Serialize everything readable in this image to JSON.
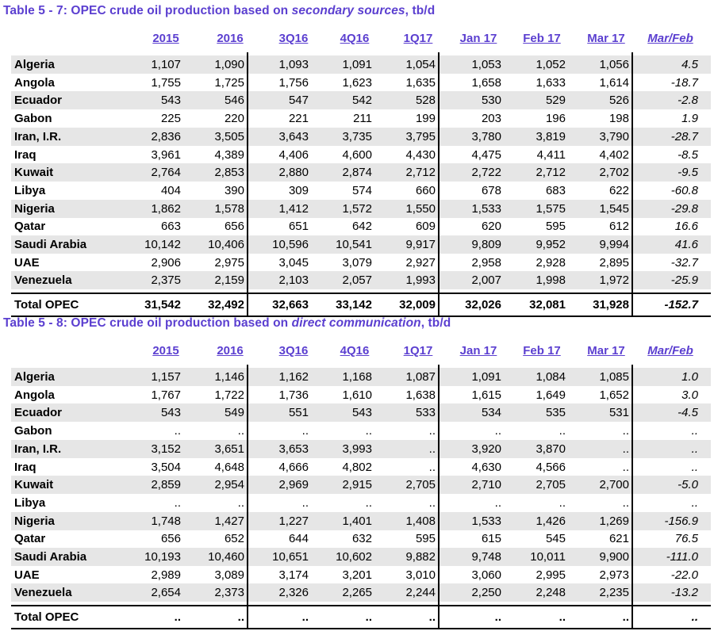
{
  "columns": [
    "2015",
    "2016",
    "3Q16",
    "4Q16",
    "1Q17",
    "Jan 17",
    "Feb 17",
    "Mar 17",
    "Mar/Feb"
  ],
  "table1": {
    "title_prefix": "Table 5 - 7: OPEC crude oil production based on",
    "title_em": "secondary sources",
    "title_suffix": ", tb/d",
    "rows": [
      {
        "name": "Algeria",
        "values": [
          "1,107",
          "1,090",
          "1,093",
          "1,091",
          "1,054",
          "1,053",
          "1,052",
          "1,056",
          "4.5"
        ]
      },
      {
        "name": "Angola",
        "values": [
          "1,755",
          "1,725",
          "1,756",
          "1,623",
          "1,635",
          "1,658",
          "1,633",
          "1,614",
          "-18.7"
        ]
      },
      {
        "name": "Ecuador",
        "values": [
          "543",
          "546",
          "547",
          "542",
          "528",
          "530",
          "529",
          "526",
          "-2.8"
        ]
      },
      {
        "name": "Gabon",
        "values": [
          "225",
          "220",
          "221",
          "211",
          "199",
          "203",
          "196",
          "198",
          "1.9"
        ]
      },
      {
        "name": "Iran, I.R.",
        "values": [
          "2,836",
          "3,505",
          "3,643",
          "3,735",
          "3,795",
          "3,780",
          "3,819",
          "3,790",
          "-28.7"
        ]
      },
      {
        "name": "Iraq",
        "values": [
          "3,961",
          "4,389",
          "4,406",
          "4,600",
          "4,430",
          "4,475",
          "4,411",
          "4,402",
          "-8.5"
        ]
      },
      {
        "name": "Kuwait",
        "values": [
          "2,764",
          "2,853",
          "2,880",
          "2,874",
          "2,712",
          "2,722",
          "2,712",
          "2,702",
          "-9.5"
        ]
      },
      {
        "name": "Libya",
        "values": [
          "404",
          "390",
          "309",
          "574",
          "660",
          "678",
          "683",
          "622",
          "-60.8"
        ]
      },
      {
        "name": "Nigeria",
        "values": [
          "1,862",
          "1,578",
          "1,412",
          "1,572",
          "1,550",
          "1,533",
          "1,575",
          "1,545",
          "-29.8"
        ]
      },
      {
        "name": "Qatar",
        "values": [
          "663",
          "656",
          "651",
          "642",
          "609",
          "620",
          "595",
          "612",
          "16.6"
        ]
      },
      {
        "name": "Saudi Arabia",
        "values": [
          "10,142",
          "10,406",
          "10,596",
          "10,541",
          "9,917",
          "9,809",
          "9,952",
          "9,994",
          "41.6"
        ]
      },
      {
        "name": "UAE",
        "values": [
          "2,906",
          "2,975",
          "3,045",
          "3,079",
          "2,927",
          "2,958",
          "2,928",
          "2,895",
          "-32.7"
        ]
      },
      {
        "name": "Venezuela",
        "values": [
          "2,375",
          "2,159",
          "2,103",
          "2,057",
          "1,993",
          "2,007",
          "1,998",
          "1,972",
          "-25.9"
        ]
      }
    ],
    "total": {
      "name": "Total  OPEC",
      "values": [
        "31,542",
        "32,492",
        "32,663",
        "33,142",
        "32,009",
        "32,026",
        "32,081",
        "31,928",
        "-152.7"
      ]
    }
  },
  "table2": {
    "title_prefix": "Table 5 - 8: OPEC crude oil production based on",
    "title_em": "direct communication",
    "title_suffix": ", tb/d",
    "rows": [
      {
        "name": "Algeria",
        "values": [
          "1,157",
          "1,146",
          "1,162",
          "1,168",
          "1,087",
          "1,091",
          "1,084",
          "1,085",
          "1.0"
        ]
      },
      {
        "name": "Angola",
        "values": [
          "1,767",
          "1,722",
          "1,736",
          "1,610",
          "1,638",
          "1,615",
          "1,649",
          "1,652",
          "3.0"
        ]
      },
      {
        "name": "Ecuador",
        "values": [
          "543",
          "549",
          "551",
          "543",
          "533",
          "534",
          "535",
          "531",
          "-4.5"
        ]
      },
      {
        "name": "Gabon",
        "values": [
          "..",
          "..",
          "..",
          "..",
          "..",
          "..",
          "..",
          "..",
          ".."
        ]
      },
      {
        "name": "Iran, I.R.",
        "values": [
          "3,152",
          "3,651",
          "3,653",
          "3,993",
          "..",
          "3,920",
          "3,870",
          "..",
          ".."
        ]
      },
      {
        "name": "Iraq",
        "values": [
          "3,504",
          "4,648",
          "4,666",
          "4,802",
          "..",
          "4,630",
          "4,566",
          "..",
          ".."
        ]
      },
      {
        "name": "Kuwait",
        "values": [
          "2,859",
          "2,954",
          "2,969",
          "2,915",
          "2,705",
          "2,710",
          "2,705",
          "2,700",
          "-5.0"
        ]
      },
      {
        "name": "Libya",
        "values": [
          "..",
          "..",
          "..",
          "..",
          "..",
          "..",
          "..",
          "..",
          ".."
        ]
      },
      {
        "name": "Nigeria",
        "values": [
          "1,748",
          "1,427",
          "1,227",
          "1,401",
          "1,408",
          "1,533",
          "1,426",
          "1,269",
          "-156.9"
        ]
      },
      {
        "name": "Qatar",
        "values": [
          "656",
          "652",
          "644",
          "632",
          "595",
          "615",
          "545",
          "621",
          "76.5"
        ]
      },
      {
        "name": "Saudi Arabia",
        "values": [
          "10,193",
          "10,460",
          "10,651",
          "10,602",
          "9,882",
          "9,748",
          "10,011",
          "9,900",
          "-111.0"
        ]
      },
      {
        "name": "UAE",
        "values": [
          "2,989",
          "3,089",
          "3,174",
          "3,201",
          "3,010",
          "3,060",
          "2,995",
          "2,973",
          "-22.0"
        ]
      },
      {
        "name": "Venezuela",
        "values": [
          "2,654",
          "2,373",
          "2,326",
          "2,265",
          "2,244",
          "2,250",
          "2,248",
          "2,235",
          "-13.2"
        ]
      }
    ],
    "total": {
      "name": "Total  OPEC",
      "values": [
        "..",
        "..",
        "..",
        "..",
        "..",
        "..",
        "..",
        "..",
        ".."
      ]
    }
  }
}
